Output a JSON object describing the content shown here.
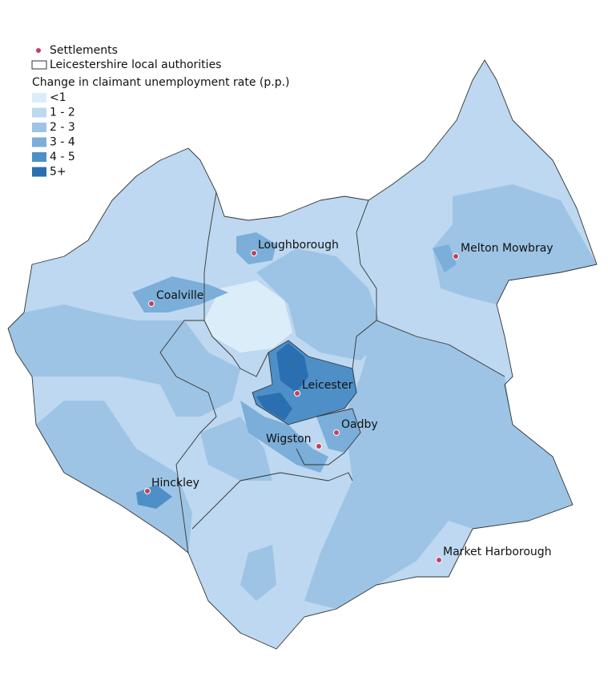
{
  "legend": {
    "settlements": "Settlements",
    "authorities": "Leicestershire local authorities",
    "title": "Change in claimant unemployment rate (p.p.)",
    "classes": [
      {
        "label": "<1",
        "color": "#dcedfa"
      },
      {
        "label": "1 - 2",
        "color": "#bdd8f0"
      },
      {
        "label": "2 - 3",
        "color": "#9dc4e5"
      },
      {
        "label": "3 - 4",
        "color": "#7baed9"
      },
      {
        "label": "4 - 5",
        "color": "#4f8fc7"
      },
      {
        "label": "5+",
        "color": "#2a70b1"
      }
    ]
  },
  "settlements": [
    "Loughborough",
    "Melton Mowbray",
    "Coalville",
    "Leicester",
    "Oadby",
    "Wigston",
    "Hinckley",
    "Market Harborough"
  ]
}
